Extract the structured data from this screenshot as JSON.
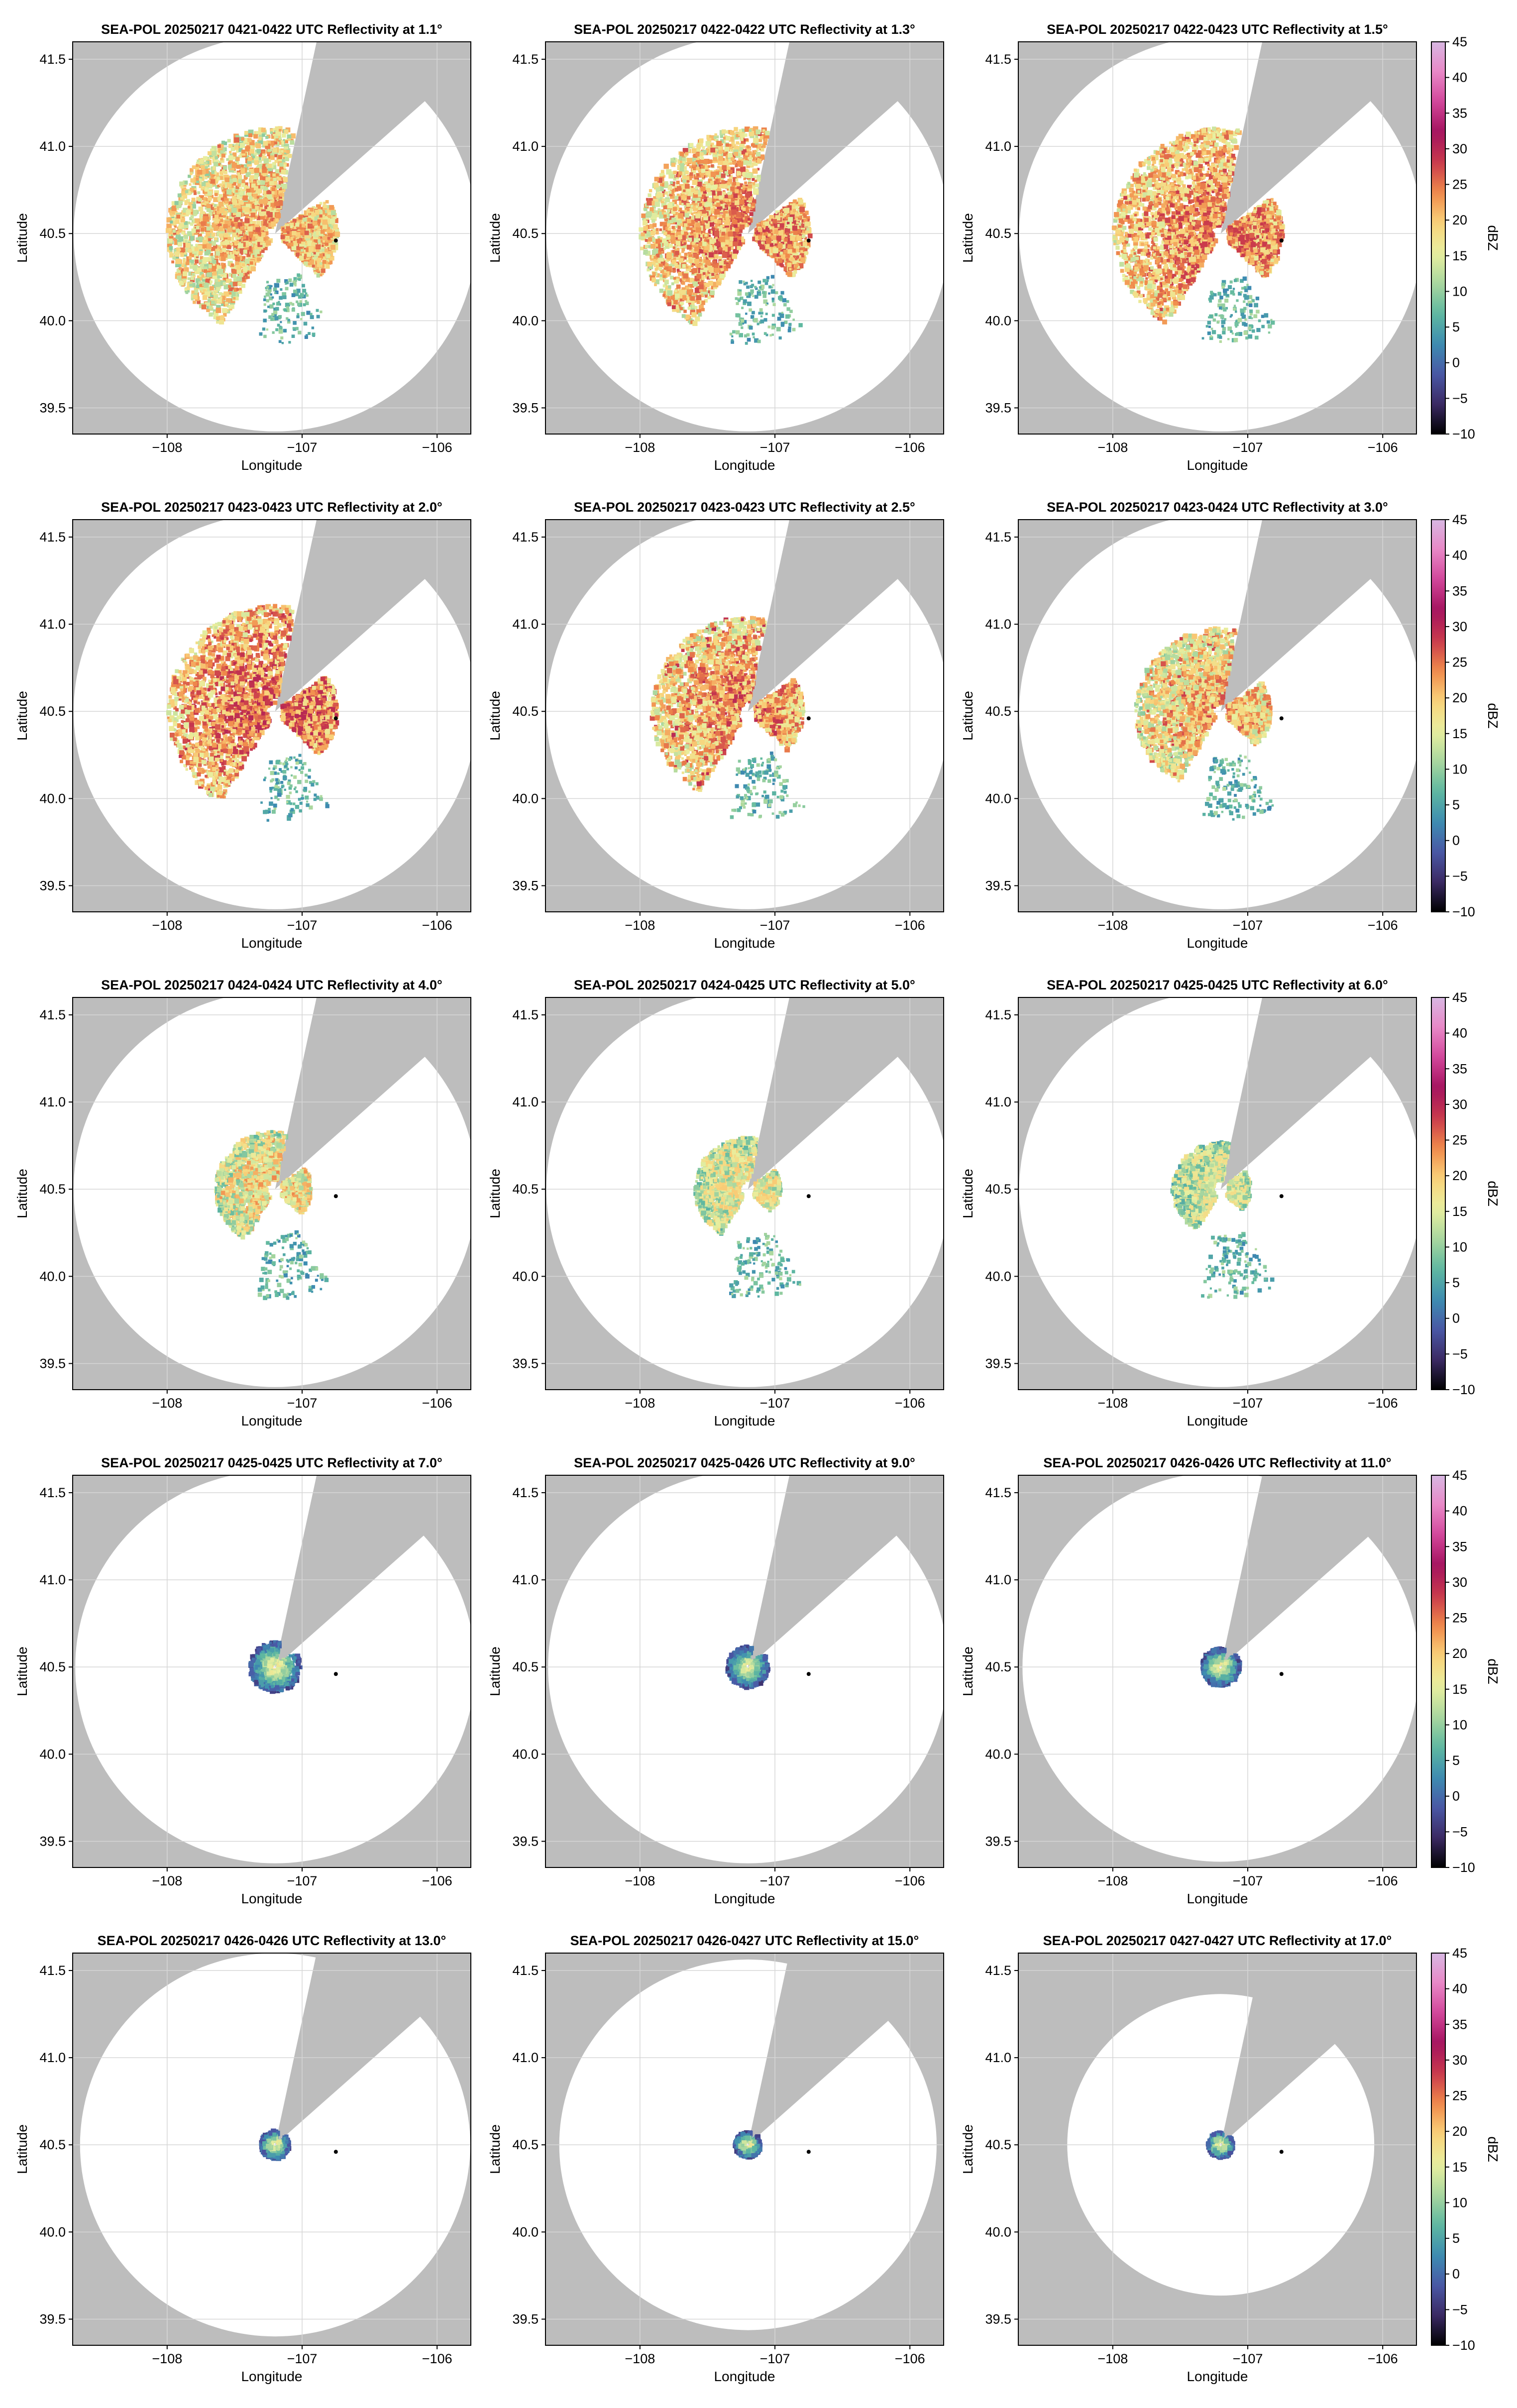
{
  "chart_data": {
    "type": "heatmap",
    "layout": {
      "rows": 5,
      "cols": 3
    },
    "xlabel": "Longitude",
    "ylabel": "Latitude",
    "xlim": [
      -108.7,
      -105.75
    ],
    "ylim": [
      39.35,
      41.6
    ],
    "xticks": [
      -108,
      -107,
      -106
    ],
    "xtick_labels": [
      "−108",
      "−107",
      "−106"
    ],
    "yticks": [
      39.5,
      40.0,
      40.5,
      41.0,
      41.5
    ],
    "ytick_labels": [
      "39.5",
      "40.0",
      "40.5",
      "41.0",
      "41.5"
    ],
    "grid": true,
    "radar_location": {
      "lon": -107.2,
      "lat": 40.5
    },
    "marker_location": {
      "lon": -106.75,
      "lat": 40.46
    },
    "blocked_sector_deg": [
      12,
      48
    ],
    "colorbar": {
      "label": "dBZ",
      "range": [
        -10,
        45
      ],
      "ticks": [
        -10,
        -5,
        0,
        5,
        10,
        15,
        20,
        25,
        30,
        35,
        40,
        45
      ],
      "tick_labels": [
        "−10",
        "−5",
        "0",
        "5",
        "10",
        "15",
        "20",
        "25",
        "30",
        "35",
        "40",
        "45"
      ],
      "colormap_stops": [
        "#000000",
        "#3b2a64",
        "#4a58a6",
        "#3d8db1",
        "#5fb8a0",
        "#aad79f",
        "#e8ef9f",
        "#f9d27a",
        "#f08a4b",
        "#c93a4c",
        "#a4135e",
        "#d1469a",
        "#e888c6",
        "#d7b7e2"
      ]
    },
    "panels": [
      {
        "title": "SEA-POL 20250217 0421-0422 UTC Reflectivity at 1.1°",
        "elevation_deg": 1.1,
        "coverage_radius_km": 126,
        "echo": {
          "extent_km": 62,
          "peak_dbz": 26,
          "mean_dbz": 14,
          "south_cells": true,
          "rings": false
        }
      },
      {
        "title": "SEA-POL 20250217 0422-0422 UTC Reflectivity at 1.3°",
        "elevation_deg": 1.3,
        "coverage_radius_km": 126,
        "echo": {
          "extent_km": 62,
          "peak_dbz": 28,
          "mean_dbz": 16,
          "south_cells": true,
          "rings": false
        }
      },
      {
        "title": "SEA-POL 20250217 0422-0423 UTC Reflectivity at 1.5°",
        "elevation_deg": 1.5,
        "coverage_radius_km": 126,
        "echo": {
          "extent_km": 62,
          "peak_dbz": 28,
          "mean_dbz": 17,
          "south_cells": true,
          "rings": false
        }
      },
      {
        "title": "SEA-POL 20250217 0423-0423 UTC Reflectivity at 2.0°",
        "elevation_deg": 2.0,
        "coverage_radius_km": 126,
        "echo": {
          "extent_km": 62,
          "peak_dbz": 30,
          "mean_dbz": 18,
          "south_cells": true,
          "rings": false
        }
      },
      {
        "title": "SEA-POL 20250217 0423-0423 UTC Reflectivity at 2.5°",
        "elevation_deg": 2.5,
        "coverage_radius_km": 126,
        "echo": {
          "extent_km": 55,
          "peak_dbz": 30,
          "mean_dbz": 16,
          "south_cells": true,
          "rings": false
        }
      },
      {
        "title": "SEA-POL 20250217 0423-0424 UTC Reflectivity at 3.0°",
        "elevation_deg": 3.0,
        "coverage_radius_km": 126,
        "echo": {
          "extent_km": 48,
          "peak_dbz": 28,
          "mean_dbz": 14,
          "south_cells": true,
          "rings": false
        }
      },
      {
        "title": "SEA-POL 20250217 0424-0424 UTC Reflectivity at 4.0°",
        "elevation_deg": 4.0,
        "coverage_radius_km": 126,
        "echo": {
          "extent_km": 32,
          "peak_dbz": 24,
          "mean_dbz": 12,
          "south_cells": true,
          "rings": false
        }
      },
      {
        "title": "SEA-POL 20250217 0424-0425 UTC Reflectivity at 5.0°",
        "elevation_deg": 5.0,
        "coverage_radius_km": 126,
        "echo": {
          "extent_km": 28,
          "peak_dbz": 20,
          "mean_dbz": 11,
          "south_cells": true,
          "rings": false
        }
      },
      {
        "title": "SEA-POL 20250217 0425-0425 UTC Reflectivity at 6.0°",
        "elevation_deg": 6.0,
        "coverage_radius_km": 126,
        "echo": {
          "extent_km": 25,
          "peak_dbz": 18,
          "mean_dbz": 10,
          "south_cells": true,
          "rings": false
        }
      },
      {
        "title": "SEA-POL 20250217 0425-0425 UTC Reflectivity at 7.0°",
        "elevation_deg": 7.0,
        "coverage_radius_km": 125,
        "echo": {
          "extent_km": 16,
          "peak_dbz": 16,
          "mean_dbz": 9,
          "south_cells": false,
          "rings": true
        }
      },
      {
        "title": "SEA-POL 20250217 0425-0426 UTC Reflectivity at 9.0°",
        "elevation_deg": 9.0,
        "coverage_radius_km": 125,
        "echo": {
          "extent_km": 13,
          "peak_dbz": 15,
          "mean_dbz": 8,
          "south_cells": false,
          "rings": true
        }
      },
      {
        "title": "SEA-POL 20250217 0426-0426 UTC Reflectivity at 11.0°",
        "elevation_deg": 11.0,
        "coverage_radius_km": 124,
        "echo": {
          "extent_km": 12,
          "peak_dbz": 15,
          "mean_dbz": 8,
          "south_cells": false,
          "rings": true
        }
      },
      {
        "title": "SEA-POL 20250217 0426-0426 UTC Reflectivity at 13.0°",
        "elevation_deg": 13.0,
        "coverage_radius_km": 122,
        "echo": {
          "extent_km": 9,
          "peak_dbz": 14,
          "mean_dbz": 8,
          "south_cells": false,
          "rings": true
        }
      },
      {
        "title": "SEA-POL 20250217 0426-0427 UTC Reflectivity at 15.0°",
        "elevation_deg": 15.0,
        "coverage_radius_km": 118,
        "echo": {
          "extent_km": 8,
          "peak_dbz": 14,
          "mean_dbz": 8,
          "south_cells": false,
          "rings": true
        }
      },
      {
        "title": "SEA-POL 20250217 0427-0427 UTC Reflectivity at 17.0°",
        "elevation_deg": 17.0,
        "coverage_radius_km": 96,
        "echo": {
          "extent_km": 8,
          "peak_dbz": 14,
          "mean_dbz": 8,
          "south_cells": false,
          "rings": true
        }
      }
    ]
  }
}
